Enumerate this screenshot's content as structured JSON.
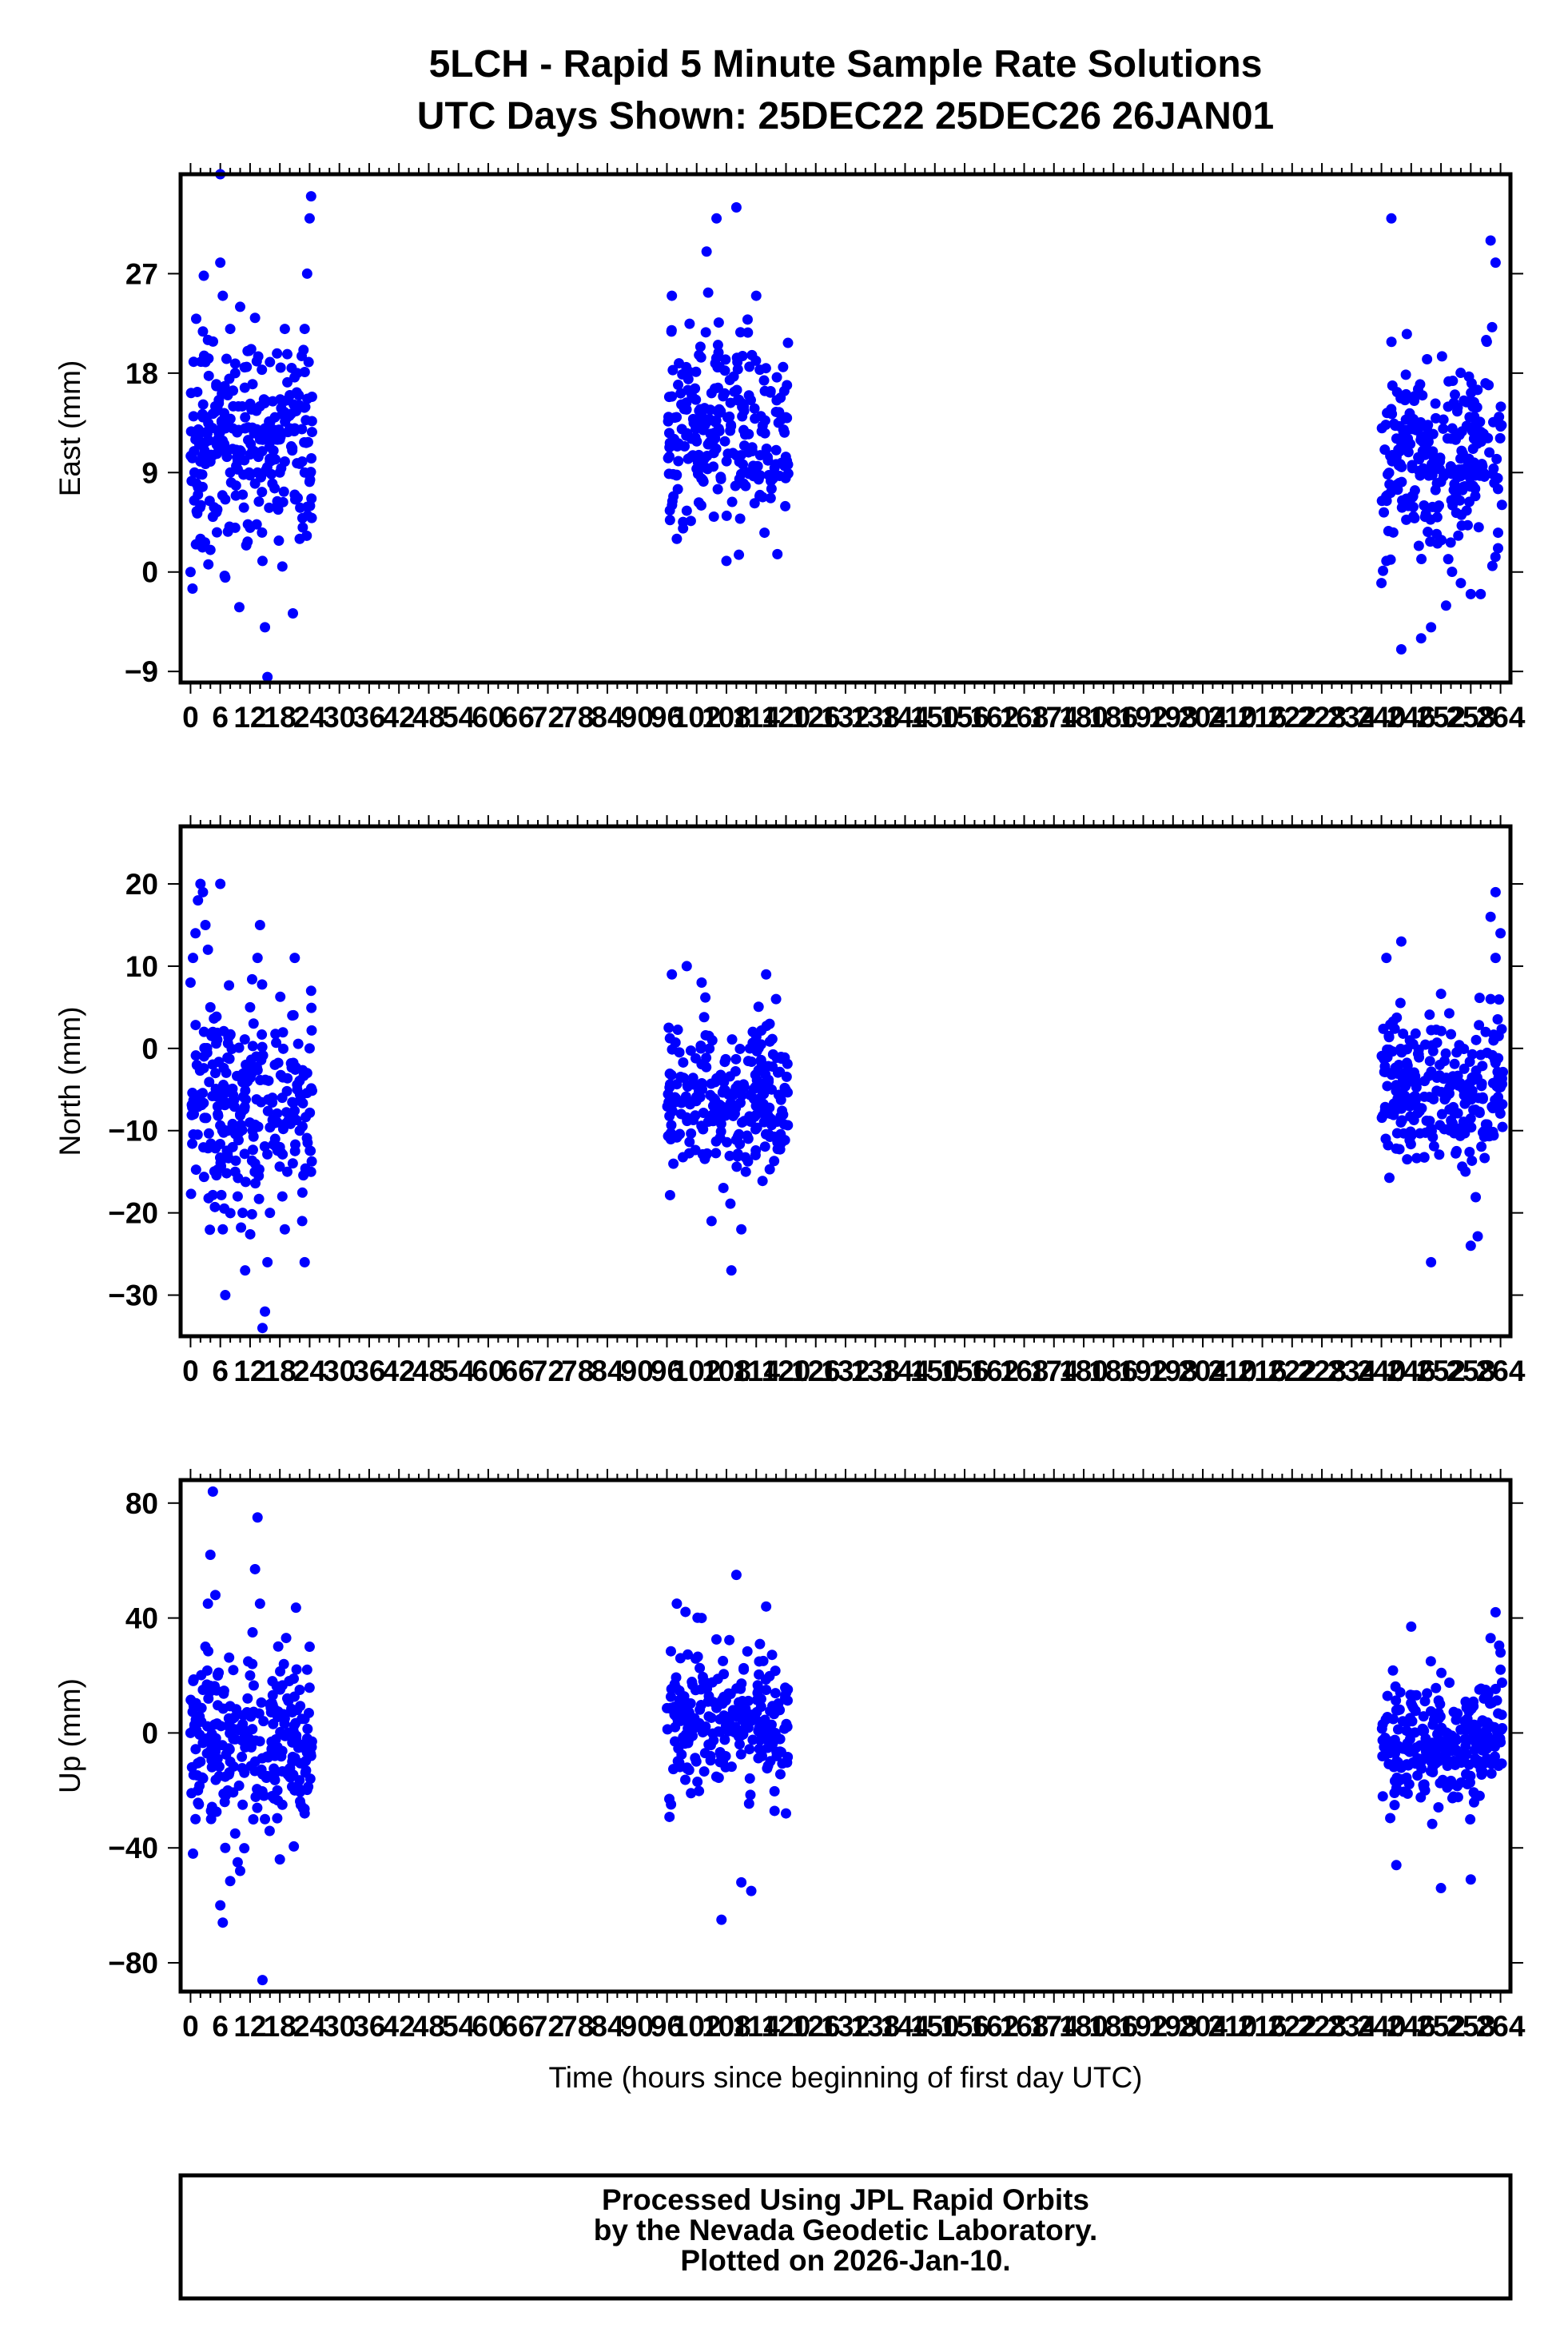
{
  "figure": {
    "title_line1": "5LCH - Rapid 5 Minute Sample Rate Solutions",
    "title_line2": "UTC Days Shown:  25DEC22 25DEC26 26JAN01",
    "x_axis_label": "Time (hours since beginning of first day UTC)",
    "footer_line1": "Processed Using JPL Rapid Orbits",
    "footer_line2": "by the Nevada Geodetic Laboratory.",
    "footer_line3": "Plotted on 2026-Jan-10."
  },
  "colors": {
    "points": "#0000ff",
    "frame": "#000000",
    "background": "#ffffff"
  },
  "chart_data": [
    {
      "type": "scatter",
      "ylabel": "East (mm)",
      "xlim": [
        -2,
        266
      ],
      "ylim": [
        -10,
        36
      ],
      "yticks": [
        -9,
        0,
        9,
        18,
        27
      ],
      "xticks": [
        0,
        6,
        12,
        18,
        24,
        30,
        36,
        42,
        48,
        54,
        60,
        66,
        72,
        78,
        84,
        90,
        96,
        102,
        108,
        114,
        120,
        126,
        132,
        138,
        144,
        150,
        156,
        162,
        168,
        174,
        180,
        186,
        192,
        198,
        204,
        210,
        216,
        222,
        228,
        234,
        240,
        246,
        252,
        258,
        264
      ],
      "series": [
        {
          "points": [
            [
              0,
              0
            ],
            [
              0.4,
              -1.5
            ],
            [
              0.8,
              9
            ],
            [
              1,
              12
            ],
            [
              1.5,
              7
            ],
            [
              2,
              10
            ],
            [
              2.5,
              14
            ],
            [
              3,
              19
            ],
            [
              3.5,
              21
            ],
            [
              4,
              2
            ],
            [
              4.5,
              5
            ],
            [
              5,
              15
            ],
            [
              5.5,
              12
            ],
            [
              6,
              28
            ],
            [
              6.5,
              25
            ],
            [
              7,
              -0.5
            ],
            [
              7.5,
              16
            ],
            [
              8,
              22
            ],
            [
              8.5,
              13
            ],
            [
              9,
              18
            ],
            [
              9.5,
              10
            ],
            [
              10,
              24
            ],
            [
              10.5,
              7
            ],
            [
              11,
              14
            ],
            [
              11.5,
              20
            ],
            [
              12,
              4
            ],
            [
              12.5,
              11
            ],
            [
              13,
              23
            ],
            [
              13.5,
              9
            ],
            [
              14,
              15
            ],
            [
              14.5,
              1
            ],
            [
              15,
              -5
            ],
            [
              15.5,
              -9.5
            ],
            [
              16,
              19
            ],
            [
              16.5,
              8
            ],
            [
              17,
              12
            ],
            [
              17.5,
              6
            ],
            [
              18,
              9
            ],
            [
              18.5,
              0.5
            ],
            [
              19,
              22
            ],
            [
              19.5,
              14
            ],
            [
              20,
              16
            ],
            [
              20.5,
              11
            ],
            [
              21,
              7
            ],
            [
              21.5,
              18
            ],
            [
              22,
              3
            ],
            [
              22.5,
              10
            ],
            [
              23,
              22
            ],
            [
              23.5,
              27
            ],
            [
              24,
              32
            ],
            [
              24.3,
              34
            ],
            [
              2,
              3
            ],
            [
              6,
              36
            ],
            [
              9,
              4
            ],
            [
              12.5,
              17
            ],
            [
              16,
              10
            ],
            [
              20,
              13
            ],
            [
              23,
              9
            ],
            [
              2.8,
              11
            ],
            [
              5.2,
              17
            ],
            [
              8,
              9
            ],
            [
              11,
              13
            ],
            [
              14,
              12
            ],
            [
              17,
              14
            ],
            [
              19,
              10
            ],
            [
              21,
              13
            ],
            [
              13,
              8
            ],
            [
              10,
              11
            ],
            [
              7,
              13
            ],
            [
              4,
              10
            ],
            [
              1.2,
              8
            ],
            [
              3.2,
              14
            ],
            [
              5.8,
              11
            ],
            [
              8.6,
              15
            ],
            [
              11.8,
              9
            ],
            [
              15,
              13
            ],
            [
              18,
              12
            ],
            [
              21.8,
              16
            ],
            [
              23.8,
              19
            ]
          ]
        }
      ],
      "groups": [
        {
          "x_range": [
            0,
            24.5
          ],
          "y_center": 12,
          "y_spread": 6,
          "count": 230
        },
        {
          "x_range": [
            96,
            120.5
          ],
          "y_center": 13,
          "y_spread": 5.5,
          "count": 250
        },
        {
          "x_range": [
            240,
            264.5
          ],
          "y_center": 10,
          "y_spread": 6,
          "count": 260
        }
      ],
      "fixed_points": [
        [
          110,
          33
        ],
        [
          106,
          32
        ],
        [
          104,
          29
        ],
        [
          114,
          25
        ],
        [
          97,
          25
        ],
        [
          98,
          3
        ],
        [
          108,
          1
        ],
        [
          242,
          32
        ],
        [
          244,
          -7
        ],
        [
          248,
          -6
        ],
        [
          250,
          -5
        ],
        [
          262,
          30
        ],
        [
          263,
          28
        ],
        [
          256,
          -1
        ],
        [
          258,
          -2
        ],
        [
          260,
          -2
        ],
        [
          240,
          -1
        ],
        [
          241,
          1
        ]
      ]
    },
    {
      "type": "scatter",
      "ylabel": "North (mm)",
      "xlim": [
        -2,
        266
      ],
      "ylim": [
        -35,
        27
      ],
      "yticks": [
        -30,
        -20,
        -10,
        0,
        10,
        20
      ],
      "xticks": [
        0,
        6,
        12,
        18,
        24,
        30,
        36,
        42,
        48,
        54,
        60,
        66,
        72,
        78,
        84,
        90,
        96,
        102,
        108,
        114,
        120,
        126,
        132,
        138,
        144,
        150,
        156,
        162,
        168,
        174,
        180,
        186,
        192,
        198,
        204,
        210,
        216,
        222,
        228,
        234,
        240,
        246,
        252,
        258,
        264
      ],
      "series": [
        {
          "points": [
            [
              0,
              8
            ],
            [
              0.5,
              11
            ],
            [
              1,
              14
            ],
            [
              1.5,
              18
            ],
            [
              2,
              20
            ],
            [
              2.5,
              19
            ],
            [
              3,
              15
            ],
            [
              3.5,
              12
            ],
            [
              4,
              5
            ],
            [
              4.5,
              2
            ],
            [
              5,
              -3
            ],
            [
              5.5,
              -8
            ],
            [
              6,
              20
            ],
            [
              6.5,
              -22
            ],
            [
              7,
              -30
            ],
            [
              7.5,
              -10
            ],
            [
              8,
              -5
            ],
            [
              8.5,
              -12
            ],
            [
              9,
              -15
            ],
            [
              9.5,
              -18
            ],
            [
              10,
              -8
            ],
            [
              10.5,
              -20
            ],
            [
              11,
              -27
            ],
            [
              11.5,
              -4
            ],
            [
              12,
              5
            ],
            [
              12.5,
              -10
            ],
            [
              13,
              -14
            ],
            [
              13.5,
              11
            ],
            [
              14,
              15
            ],
            [
              14.5,
              -34
            ],
            [
              15,
              -32
            ],
            [
              15.5,
              -26
            ],
            [
              16,
              -20
            ],
            [
              16.5,
              -6
            ],
            [
              17,
              -2
            ],
            [
              17.5,
              -9
            ],
            [
              18,
              -12
            ],
            [
              18.5,
              -18
            ],
            [
              19,
              -22
            ],
            [
              19.5,
              -15
            ],
            [
              20,
              -8
            ],
            [
              20.5,
              4
            ],
            [
              21,
              11
            ],
            [
              21.5,
              -5
            ],
            [
              22,
              -10
            ],
            [
              22.5,
              -21
            ],
            [
              23,
              -26
            ],
            [
              23.5,
              -3
            ],
            [
              24,
              0
            ],
            [
              24.3,
              7
            ]
          ]
        }
      ],
      "groups": [
        {
          "x_range": [
            0,
            24.5
          ],
          "y_center": -6,
          "y_spread": 8,
          "count": 230
        },
        {
          "x_range": [
            96,
            120.5
          ],
          "y_center": -6,
          "y_spread": 6,
          "count": 250
        },
        {
          "x_range": [
            240,
            264.5
          ],
          "y_center": -5,
          "y_spread": 6,
          "count": 260
        }
      ],
      "fixed_points": [
        [
          97,
          9
        ],
        [
          100,
          10
        ],
        [
          103,
          8
        ],
        [
          105,
          -21
        ],
        [
          109,
          -27
        ],
        [
          111,
          -22
        ],
        [
          116,
          9
        ],
        [
          118,
          6
        ],
        [
          241,
          11
        ],
        [
          244,
          13
        ],
        [
          250,
          -26
        ],
        [
          258,
          -24
        ],
        [
          262,
          16
        ],
        [
          263,
          19
        ],
        [
          264,
          14
        ],
        [
          263,
          11
        ],
        [
          262,
          6
        ],
        [
          261,
          2
        ]
      ]
    },
    {
      "type": "scatter",
      "ylabel": "Up (mm)",
      "xlim": [
        -2,
        266
      ],
      "ylim": [
        -90,
        88
      ],
      "yticks": [
        -80,
        -40,
        0,
        40,
        80
      ],
      "xticks": [
        0,
        6,
        12,
        18,
        24,
        30,
        36,
        42,
        48,
        54,
        60,
        66,
        72,
        78,
        84,
        90,
        96,
        102,
        108,
        114,
        120,
        126,
        132,
        138,
        144,
        150,
        156,
        162,
        168,
        174,
        180,
        186,
        192,
        198,
        204,
        210,
        216,
        222,
        228,
        234,
        240,
        246,
        252,
        258,
        264
      ],
      "series": [
        {
          "points": [
            [
              0,
              0
            ],
            [
              0.5,
              -42
            ],
            [
              1,
              -30
            ],
            [
              1.5,
              -20
            ],
            [
              2,
              -10
            ],
            [
              2.5,
              15
            ],
            [
              3,
              30
            ],
            [
              3.5,
              45
            ],
            [
              4,
              62
            ],
            [
              4.5,
              84
            ],
            [
              5,
              48
            ],
            [
              5.5,
              20
            ],
            [
              6,
              -60
            ],
            [
              6.5,
              -66
            ],
            [
              7,
              -40
            ],
            [
              7.5,
              -20
            ],
            [
              8,
              -10
            ],
            [
              8.5,
              5
            ],
            [
              9,
              -35
            ],
            [
              9.5,
              -45
            ],
            [
              10,
              -48
            ],
            [
              10.5,
              -25
            ],
            [
              11,
              -5
            ],
            [
              11.5,
              12
            ],
            [
              12,
              20
            ],
            [
              12.5,
              35
            ],
            [
              13,
              57
            ],
            [
              13.5,
              75
            ],
            [
              14,
              45
            ],
            [
              14.5,
              -86
            ],
            [
              15,
              -30
            ],
            [
              15.5,
              -15
            ],
            [
              16,
              10
            ],
            [
              16.5,
              18
            ],
            [
              17,
              -8
            ],
            [
              17.5,
              -20
            ],
            [
              18,
              -44
            ],
            [
              18.5,
              -25
            ],
            [
              19,
              5
            ],
            [
              19.5,
              12
            ],
            [
              20,
              0
            ],
            [
              20.5,
              -10
            ],
            [
              21,
              -20
            ],
            [
              21.5,
              8
            ],
            [
              22,
              15
            ],
            [
              22.5,
              -5
            ],
            [
              23,
              -28
            ],
            [
              23.5,
              22
            ],
            [
              24,
              30
            ],
            [
              24.3,
              -8
            ]
          ]
        }
      ],
      "groups": [
        {
          "x_range": [
            0,
            24.5
          ],
          "y_center": -3,
          "y_spread": 18,
          "count": 230
        },
        {
          "x_range": [
            96,
            120.5
          ],
          "y_center": 3,
          "y_spread": 17,
          "count": 250
        },
        {
          "x_range": [
            240,
            264.5
          ],
          "y_center": -3,
          "y_spread": 14,
          "count": 260
        }
      ],
      "fixed_points": [
        [
          98,
          45
        ],
        [
          103,
          40
        ],
        [
          107,
          -65
        ],
        [
          110,
          55
        ],
        [
          111,
          -52
        ],
        [
          113,
          -55
        ],
        [
          116,
          44
        ],
        [
          120,
          -28
        ],
        [
          243,
          -46
        ],
        [
          246,
          37
        ],
        [
          252,
          -54
        ],
        [
          258,
          -51
        ],
        [
          262,
          33
        ],
        [
          263,
          42
        ],
        [
          264,
          28
        ],
        [
          264,
          22
        ],
        [
          261,
          15
        ]
      ]
    }
  ]
}
